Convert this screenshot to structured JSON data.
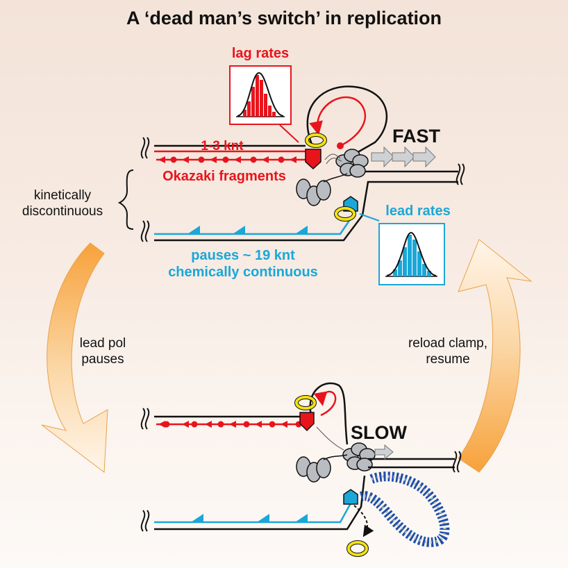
{
  "title": "A ‘dead man’s switch’ in replication",
  "states": {
    "fast": "FAST",
    "slow": "SLOW"
  },
  "lagging": {
    "rates_label": "lag rates",
    "fragment_length": "1-3 knt",
    "fragments_label": "Okazaki fragments"
  },
  "leading": {
    "rates_label": "lead rates",
    "pauses_label": "pauses ~ 19 knt",
    "continuity_label": "chemically continuous"
  },
  "side_labels": {
    "kinetic_line1": "kinetically",
    "kinetic_line2": "discontinuous",
    "pause_line1": "lead pol",
    "pause_line2": "pauses",
    "reload_line1": "reload clamp,",
    "reload_line2": "resume"
  },
  "colors": {
    "lagging": "#e8141c",
    "leading": "#1aa7d8",
    "clamp": "#f2e20f",
    "helicase": "#b9bcc0",
    "ssb": "#1f4fa8",
    "cycle_arrow": "#f3a23a"
  }
}
